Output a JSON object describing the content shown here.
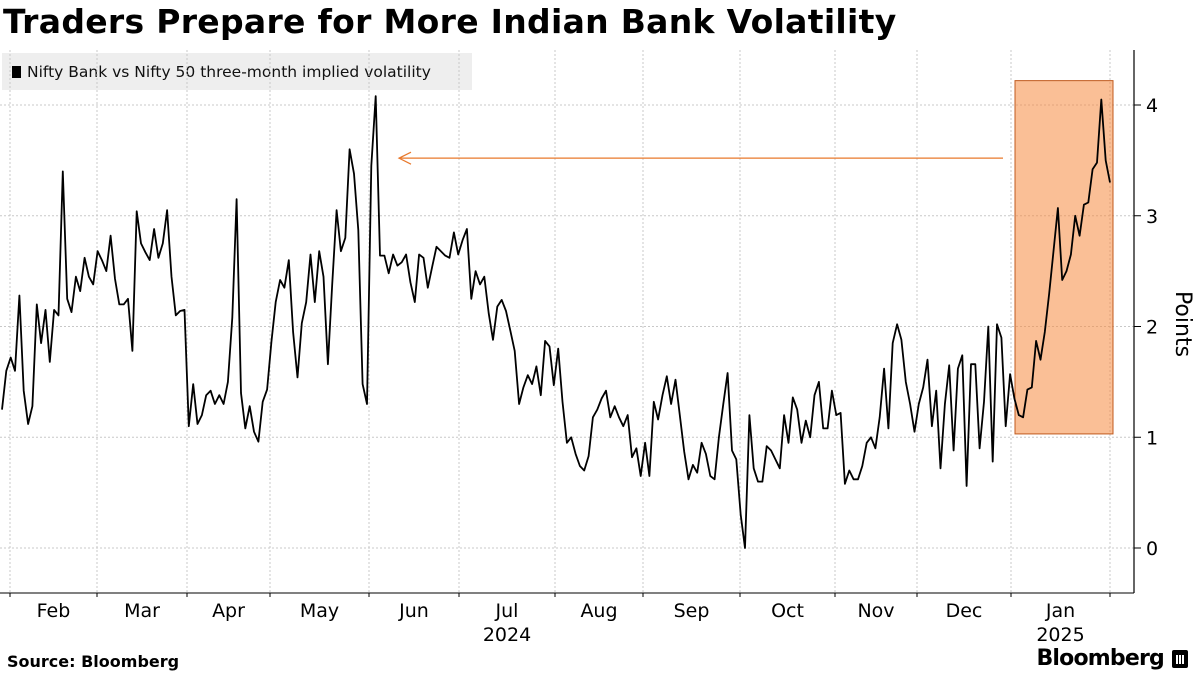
{
  "chart_data": {
    "type": "line",
    "title": "Traders Prepare for More Indian Bank Volatility",
    "legend": [
      {
        "label": "Nifty Bank vs Nifty 50 three-month implied volatility",
        "color": "#000000"
      }
    ],
    "ylabel": "Points",
    "ylim": [
      -0.4,
      4.5
    ],
    "yticks": [
      0,
      1,
      2,
      3,
      4
    ],
    "x_axis": {
      "months": [
        "Feb",
        "Mar",
        "Apr",
        "May",
        "Jun",
        "Jul",
        "Aug",
        "Sep",
        "Oct",
        "Nov",
        "Dec",
        "Jan"
      ],
      "years": [
        {
          "label": "2024",
          "month": "Jul"
        },
        {
          "label": "2025",
          "month": "Jan"
        }
      ]
    },
    "series": [
      {
        "name": "Nifty Bank vs Nifty 50 three-month implied volatility",
        "color": "#000000",
        "values": [
          1.25,
          1.6,
          1.72,
          1.6,
          2.28,
          1.42,
          1.12,
          1.28,
          2.2,
          1.85,
          2.15,
          1.68,
          2.15,
          2.1,
          3.4,
          2.25,
          2.13,
          2.45,
          2.32,
          2.62,
          2.45,
          2.38,
          2.68,
          2.6,
          2.5,
          2.82,
          2.43,
          2.2,
          2.2,
          2.25,
          1.78,
          3.04,
          2.75,
          2.67,
          2.6,
          2.88,
          2.62,
          2.75,
          3.05,
          2.45,
          2.1,
          2.14,
          2.15,
          1.1,
          1.48,
          1.12,
          1.2,
          1.38,
          1.42,
          1.3,
          1.38,
          1.3,
          1.5,
          2.08,
          3.15,
          1.4,
          1.08,
          1.28,
          1.05,
          0.96,
          1.32,
          1.43,
          1.86,
          2.22,
          2.42,
          2.35,
          2.6,
          1.95,
          1.54,
          2.03,
          2.22,
          2.65,
          2.22,
          2.68,
          2.45,
          1.66,
          2.38,
          3.05,
          2.68,
          2.8,
          3.6,
          3.38,
          2.87,
          1.48,
          1.3,
          3.45,
          4.08,
          2.64,
          2.64,
          2.48,
          2.65,
          2.55,
          2.58,
          2.65,
          2.4,
          2.22,
          2.65,
          2.62,
          2.35,
          2.54,
          2.72,
          2.68,
          2.64,
          2.62,
          2.85,
          2.65,
          2.78,
          2.88,
          2.25,
          2.5,
          2.38,
          2.45,
          2.12,
          1.88,
          2.18,
          2.24,
          2.14,
          1.96,
          1.78,
          1.3,
          1.45,
          1.56,
          1.48,
          1.64,
          1.38,
          1.87,
          1.82,
          1.47,
          1.8,
          1.32,
          0.95,
          1.0,
          0.85,
          0.74,
          0.7,
          0.83,
          1.18,
          1.25,
          1.35,
          1.42,
          1.18,
          1.28,
          1.18,
          1.1,
          1.2,
          0.82,
          0.9,
          0.65,
          0.95,
          0.65,
          1.32,
          1.16,
          1.38,
          1.55,
          1.3,
          1.52,
          1.2,
          0.87,
          0.62,
          0.75,
          0.68,
          0.95,
          0.85,
          0.65,
          0.62,
          1.0,
          1.3,
          1.58,
          0.88,
          0.8,
          0.3,
          0.0,
          1.2,
          0.72,
          0.6,
          0.6,
          0.92,
          0.88,
          0.8,
          0.72,
          1.2,
          0.95,
          1.36,
          1.25,
          0.95,
          1.15,
          1.0,
          1.38,
          1.5,
          1.08,
          1.08,
          1.42,
          1.2,
          1.22,
          0.58,
          0.7,
          0.62,
          0.62,
          0.74,
          0.95,
          1.0,
          0.9,
          1.18,
          1.62,
          1.08,
          1.85,
          2.02,
          1.88,
          1.5,
          1.3,
          1.05,
          1.3,
          1.45,
          1.7,
          1.1,
          1.42,
          0.72,
          1.3,
          1.65,
          0.88,
          1.62,
          1.74,
          0.56,
          1.66,
          1.66,
          0.9,
          1.32,
          2.0,
          0.78,
          2.02,
          1.9,
          1.1,
          1.57,
          1.35,
          1.2,
          1.18,
          1.43,
          1.45,
          1.87,
          1.7,
          1.95,
          2.3,
          2.68,
          3.07,
          2.42,
          2.5,
          2.65,
          3.0,
          2.82,
          3.1,
          3.12,
          3.42,
          3.48,
          4.05,
          3.5,
          3.3
        ]
      }
    ],
    "highlight_box": {
      "y_range": [
        1.03,
        4.22
      ],
      "color": "#f58a40"
    },
    "annotation_arrow": {
      "y": 3.52,
      "color": "#e8782b"
    }
  },
  "footer": {
    "source": "Source: Bloomberg",
    "brand": "Bloomberg"
  }
}
